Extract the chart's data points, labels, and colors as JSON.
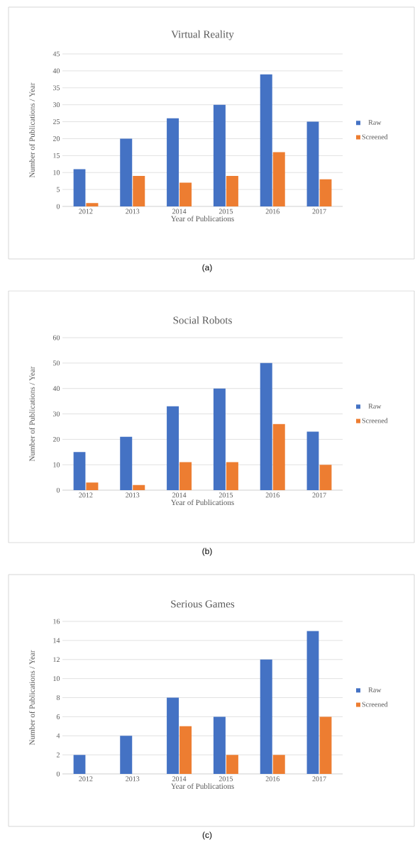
{
  "chart_data": [
    {
      "type": "bar",
      "title": "Virtual Reality",
      "xlabel": "Year of Publications",
      "ylabel": "Number of Publications / Year",
      "categories": [
        "2012",
        "2013",
        "2014",
        "2015",
        "2016",
        "2017"
      ],
      "series": [
        {
          "name": "Raw",
          "color": "#4472c4",
          "values": [
            11,
            20,
            26,
            30,
            39,
            25
          ]
        },
        {
          "name": "Screened",
          "color": "#ed7d31",
          "values": [
            1,
            9,
            7,
            9,
            16,
            8
          ]
        }
      ],
      "ylim": [
        0,
        45
      ],
      "yticks": [
        0,
        5,
        10,
        15,
        20,
        25,
        30,
        35,
        40,
        45
      ],
      "grid": "y",
      "legend": "right",
      "annotations": [
        "(a)"
      ]
    },
    {
      "type": "bar",
      "title": "Social Robots",
      "xlabel": "Year of Publications",
      "ylabel": "Number of Publications / Year",
      "categories": [
        "2012",
        "2013",
        "2014",
        "2015",
        "2016",
        "2017"
      ],
      "series": [
        {
          "name": "Raw",
          "color": "#4472c4",
          "values": [
            15,
            21,
            33,
            40,
            50,
            23
          ]
        },
        {
          "name": "Screened",
          "color": "#ed7d31",
          "values": [
            3,
            2,
            11,
            11,
            26,
            10
          ]
        }
      ],
      "ylim": [
        0,
        60
      ],
      "yticks": [
        0,
        10,
        20,
        30,
        40,
        50,
        60
      ],
      "grid": "y",
      "legend": "right",
      "annotations": [
        "(b)"
      ]
    },
    {
      "type": "bar",
      "title": "Serious Games",
      "xlabel": "Year of Publications",
      "ylabel": "Number of Publications / Year",
      "categories": [
        "2012",
        "2013",
        "2014",
        "2015",
        "2016",
        "2017"
      ],
      "series": [
        {
          "name": "Raw",
          "color": "#4472c4",
          "values": [
            2,
            4,
            8,
            6,
            12,
            15
          ]
        },
        {
          "name": "Screened",
          "color": "#ed7d31",
          "values": [
            0,
            0,
            5,
            2,
            2,
            6
          ]
        }
      ],
      "ylim": [
        0,
        16
      ],
      "yticks": [
        0,
        2,
        4,
        6,
        8,
        10,
        12,
        14,
        16
      ],
      "grid": "y",
      "legend": "right",
      "annotations": [
        "(c)"
      ]
    }
  ]
}
